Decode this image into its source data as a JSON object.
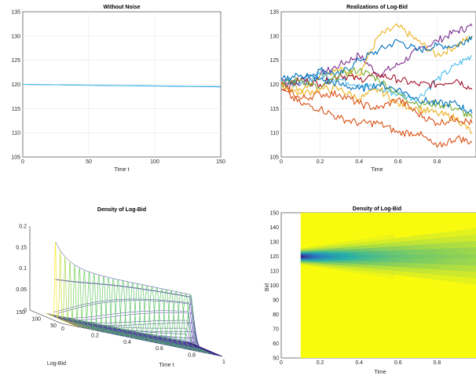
{
  "chart_data": [
    {
      "type": "line",
      "title": "Without Noise",
      "xlabel": "Time t",
      "ylabel": "",
      "xlim": [
        0,
        150
      ],
      "ylim": [
        105,
        135
      ],
      "xticks": [
        "0",
        "50",
        "100",
        "150"
      ],
      "yticks": [
        "105",
        "110",
        "115",
        "120",
        "125",
        "130",
        "135"
      ],
      "grid": true,
      "series": [
        {
          "color": "#0072bd",
          "x": [
            0,
            150
          ],
          "y": [
            120.0,
            119.5
          ]
        },
        {
          "color": "#4dbeee",
          "x": [
            0,
            150
          ],
          "y": [
            120.0,
            119.55
          ]
        }
      ]
    },
    {
      "type": "line",
      "title": "Realizations of Log-Bid",
      "xlabel": "Time",
      "ylabel": "",
      "xlim": [
        0,
        1
      ],
      "ylim": [
        105,
        135
      ],
      "xticks": [
        "0",
        "0.2",
        "0.4",
        "0.6",
        "0.8"
      ],
      "yticks": [
        "105",
        "110",
        "115",
        "120",
        "125",
        "130",
        "135"
      ],
      "grid": true,
      "x": [
        0,
        0.1,
        0.2,
        0.3,
        0.4,
        0.5,
        0.6,
        0.7,
        0.8,
        0.9,
        0.98
      ],
      "series": [
        {
          "color": "#7e2f8e",
          "values": [
            121,
            120,
            122,
            124,
            126,
            122,
            124,
            127,
            129,
            131,
            132
          ]
        },
        {
          "color": "#edb120",
          "values": [
            120,
            119,
            122,
            123,
            122,
            130,
            132,
            129,
            126,
            128,
            130
          ]
        },
        {
          "color": "#0072bd",
          "values": [
            120,
            121,
            123,
            122,
            125,
            127,
            129,
            127,
            128,
            128,
            130
          ]
        },
        {
          "color": "#4dbeee",
          "values": [
            121,
            120,
            122,
            121,
            120,
            119,
            118,
            117,
            121,
            124,
            126
          ]
        },
        {
          "color": "#a2142f",
          "values": [
            119,
            121,
            120,
            122,
            121,
            122,
            121,
            120,
            120,
            121,
            119
          ]
        },
        {
          "color": "#77ac30",
          "values": [
            120,
            121,
            119,
            122,
            123,
            121,
            118,
            116,
            116,
            115,
            113
          ]
        },
        {
          "color": "#0072bd",
          "values": [
            121,
            122,
            121,
            120,
            119,
            120,
            119,
            117,
            116,
            116,
            114
          ]
        },
        {
          "color": "#edb120",
          "values": [
            120,
            118,
            119,
            119,
            117,
            119,
            116,
            115,
            114,
            113,
            110
          ]
        },
        {
          "color": "#d95319",
          "values": [
            120,
            117,
            118,
            118,
            116,
            115,
            117,
            114,
            112,
            113,
            112
          ]
        },
        {
          "color": "#d95319",
          "values": [
            119,
            116,
            115,
            113,
            112,
            112,
            110,
            110,
            107,
            109,
            108
          ]
        }
      ]
    },
    {
      "type": "surface",
      "title": "Density of Log-Bid",
      "xlabel": "Time t",
      "ylabel": "Log-Bid",
      "zlim": [
        0,
        0.2
      ],
      "time_range": [
        0,
        1
      ],
      "bid_range": [
        50,
        150
      ],
      "xticks": [
        "0",
        "0.2",
        "0.4",
        "0.6",
        "0.8",
        "1"
      ],
      "yticks": [
        "50",
        "100",
        "150"
      ],
      "zticks": [
        "0",
        "0.05",
        "0.1",
        "0.15",
        "0.2"
      ],
      "peak_density": 0.18,
      "plateau_density": 0.12
    },
    {
      "type": "heatmap",
      "title": "Density of Log-Bid",
      "xlabel": "Time",
      "ylabel": "Bid",
      "xlim": [
        0,
        1
      ],
      "ylim": [
        50,
        150
      ],
      "xticks": [
        "0",
        "0.2",
        "0.4",
        "0.6",
        "0.8"
      ],
      "yticks": [
        "50",
        "60",
        "70",
        "80",
        "90",
        "100",
        "110",
        "120",
        "130",
        "140",
        "150"
      ],
      "center": 120,
      "background_color": "#f9fb0e"
    }
  ]
}
